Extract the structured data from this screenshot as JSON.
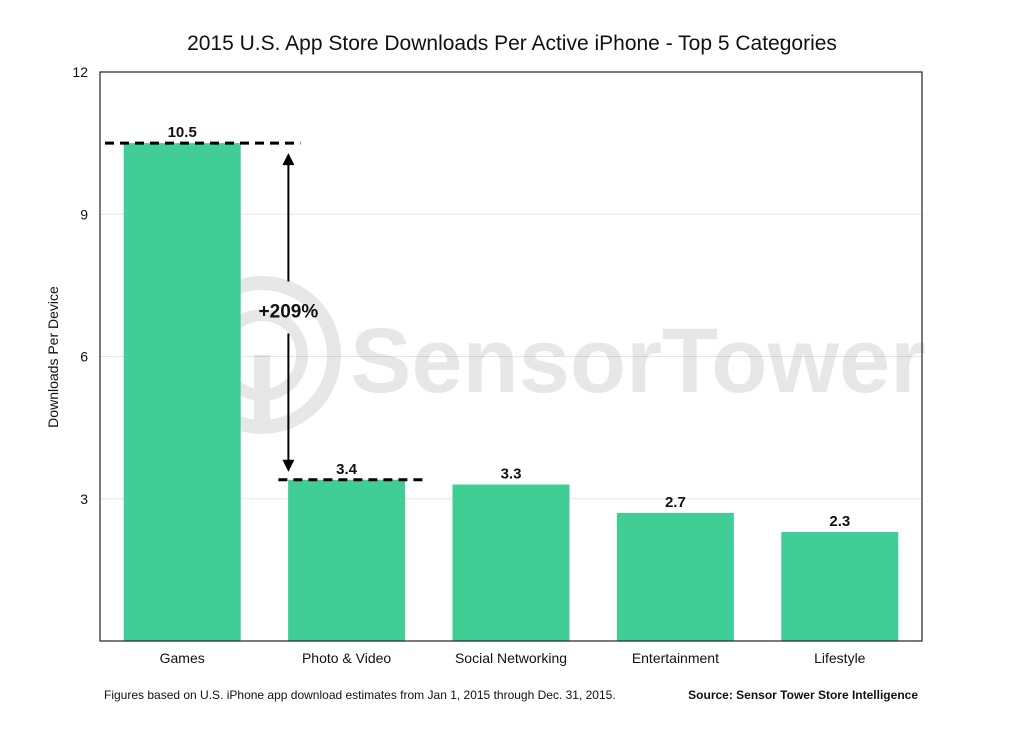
{
  "chart_data": {
    "type": "bar",
    "title": "2015 U.S. App Store Downloads Per Active iPhone - Top 5 Categories",
    "xlabel": "",
    "ylabel": "Downloads Per Device",
    "ylim": [
      0,
      12
    ],
    "yticks": [
      3,
      6,
      9,
      12
    ],
    "grid": true,
    "categories": [
      "Games",
      "Photo & Video",
      "Social Networking",
      "Entertainment",
      "Lifestyle"
    ],
    "values": [
      10.5,
      3.4,
      3.3,
      2.7,
      2.3
    ],
    "data_labels": [
      "10.5",
      "3.4",
      "3.3",
      "2.7",
      "2.3"
    ],
    "bar_color": "#41CE96",
    "annotation": {
      "label": "+209%",
      "from_value": 3.4,
      "to_value": 10.5
    },
    "footnote": "Figures based on U.S. iPhone app download estimates from Jan 1, 2015 through Dec. 31, 2015.",
    "source": "Source: Sensor Tower Store Intelligence",
    "watermark": "SensorTower"
  }
}
